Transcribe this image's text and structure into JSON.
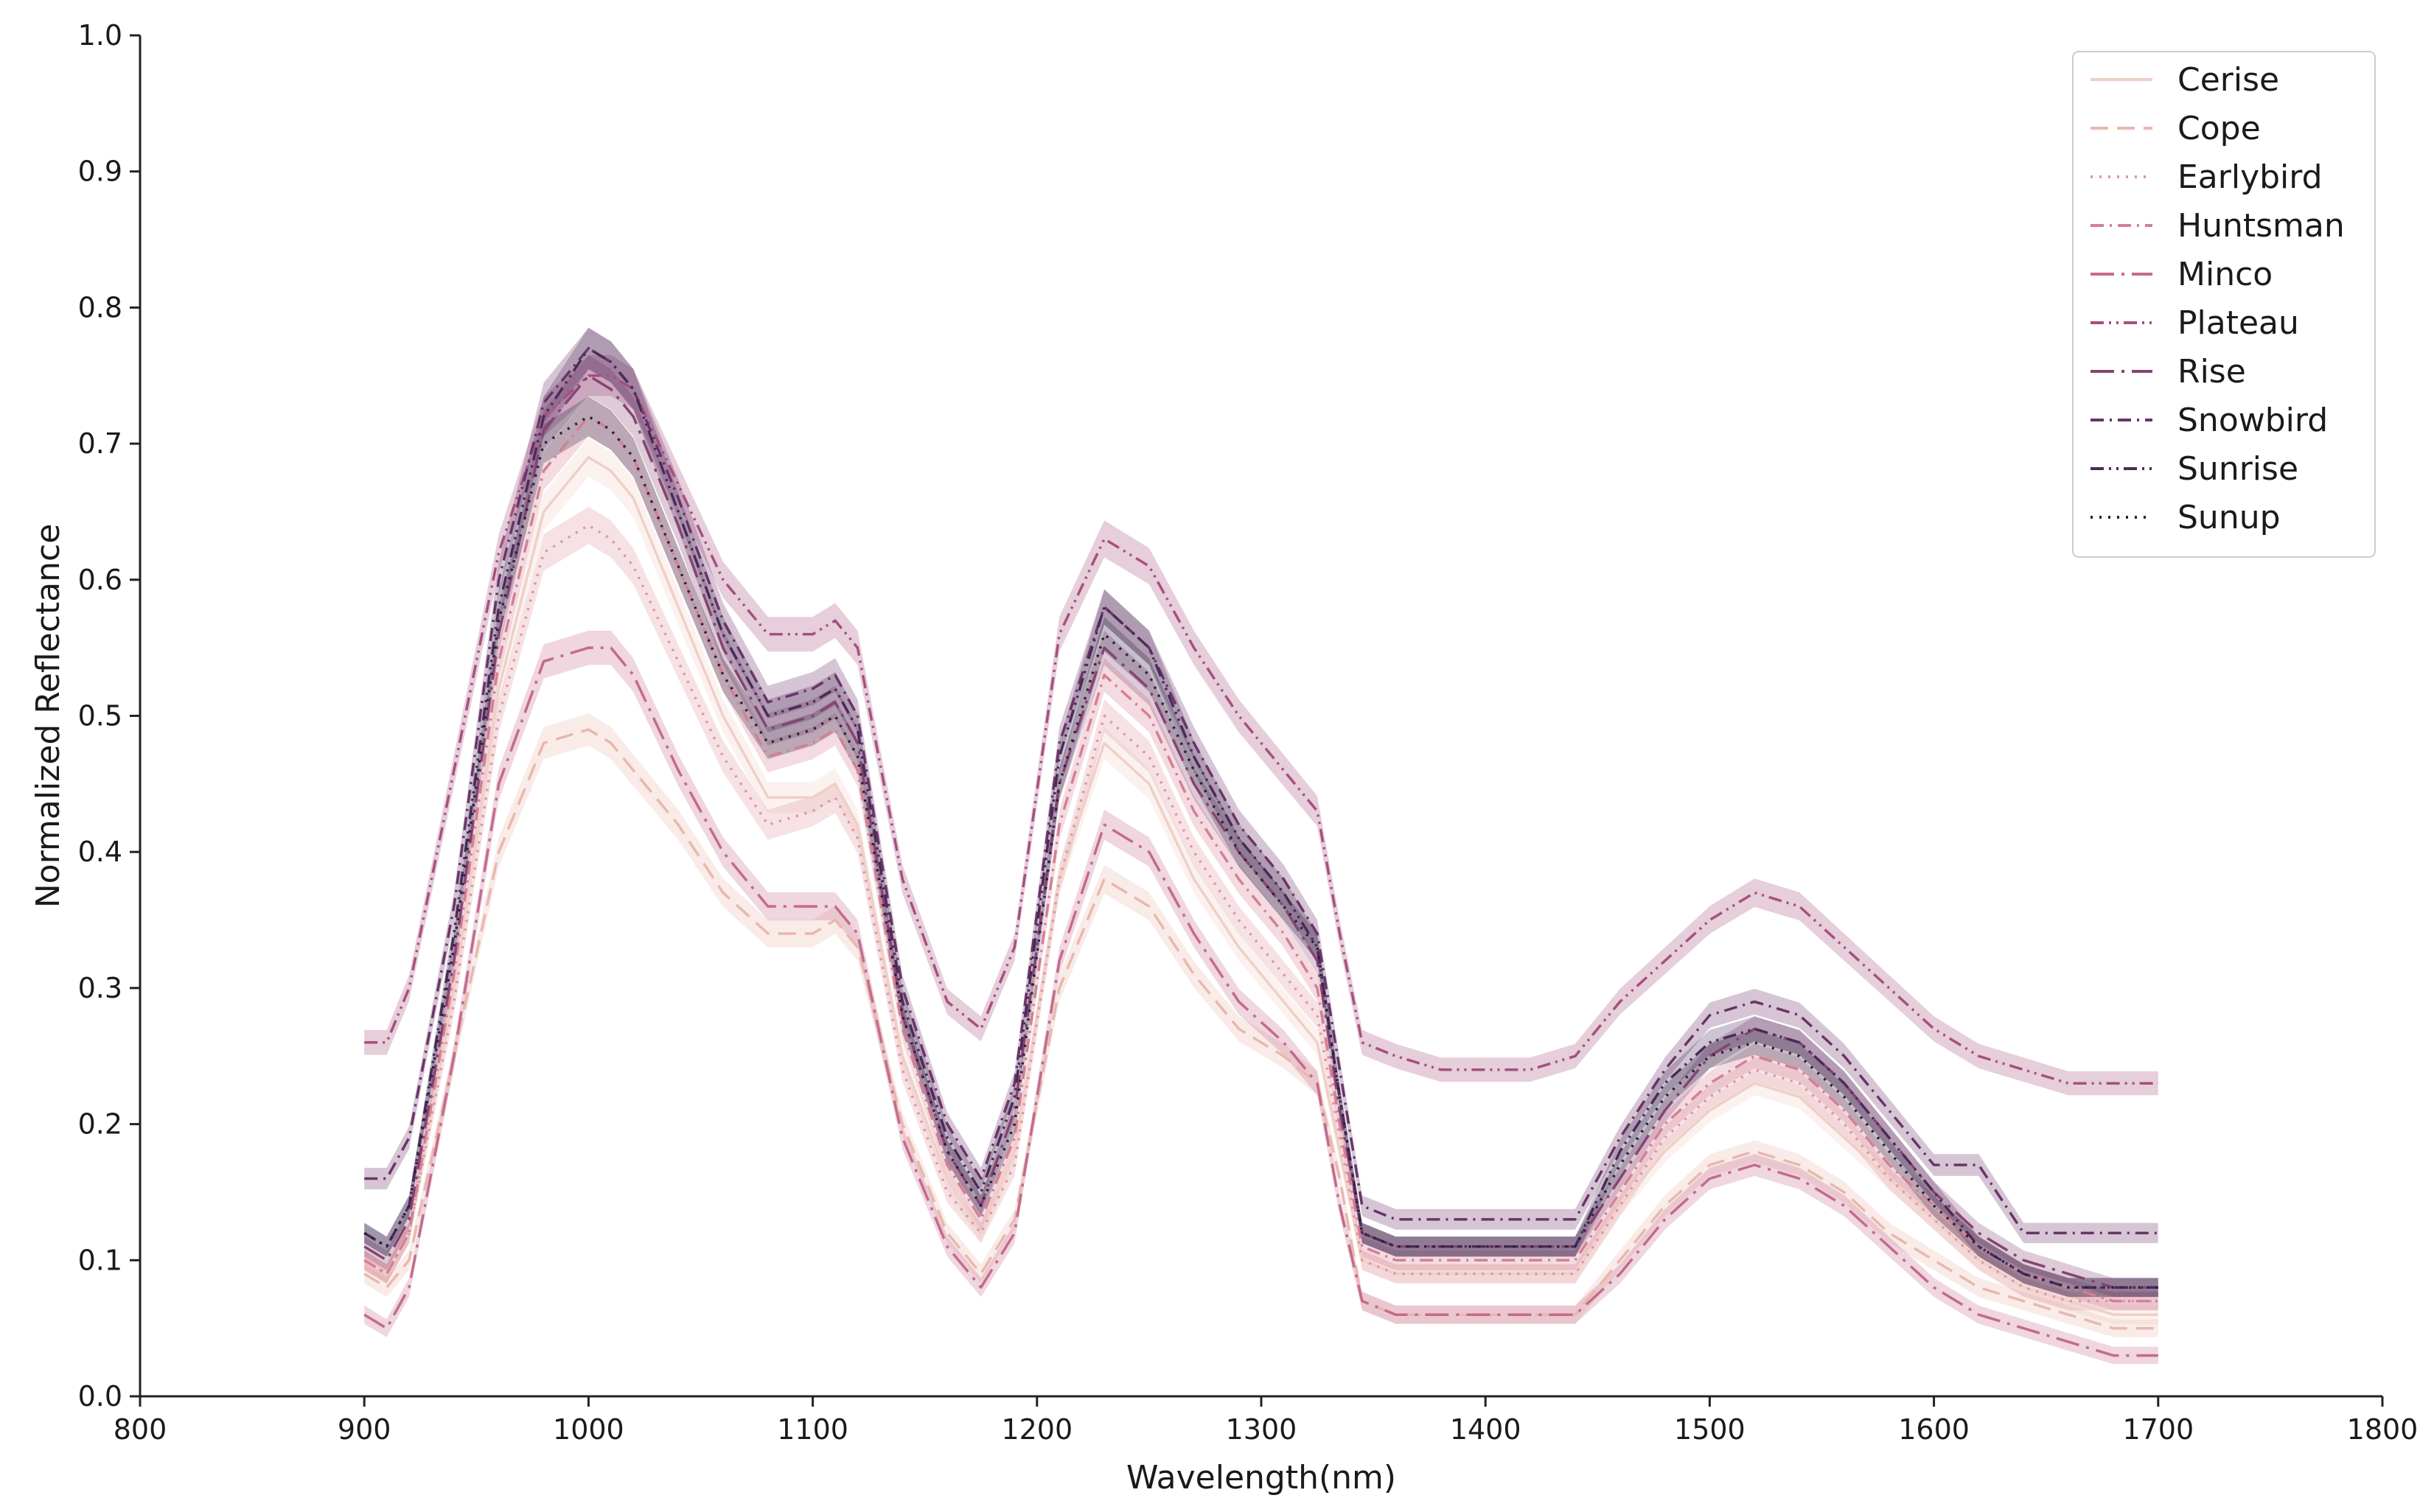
{
  "chart_data": {
    "type": "line",
    "title": "",
    "xlabel": "Wavelength(nm)",
    "ylabel": "Normalized Reflectance",
    "xlim": [
      800,
      1800
    ],
    "ylim": [
      0.0,
      1.0
    ],
    "xticks": [
      "800",
      "900",
      "1000",
      "1100",
      "1200",
      "1300",
      "1400",
      "1500",
      "1600",
      "1700",
      "1800"
    ],
    "yticks": [
      "0.0",
      "0.1",
      "0.2",
      "0.3",
      "0.4",
      "0.5",
      "0.6",
      "0.7",
      "0.8",
      "0.9",
      "1.0"
    ],
    "grid": false,
    "legend_position": "top-right",
    "shaded_band": "confidence interval",
    "x": [
      900,
      910,
      920,
      940,
      960,
      980,
      1000,
      1010,
      1020,
      1040,
      1060,
      1080,
      1100,
      1110,
      1120,
      1140,
      1160,
      1175,
      1190,
      1210,
      1230,
      1250,
      1270,
      1290,
      1310,
      1325,
      1335,
      1345,
      1360,
      1380,
      1400,
      1420,
      1440,
      1460,
      1480,
      1500,
      1520,
      1540,
      1560,
      1580,
      1600,
      1620,
      1640,
      1660,
      1680,
      1700
    ],
    "series": [
      {
        "name": "Cerise",
        "color": "#efcfc7",
        "dash": "solid",
        "values": [
          0.1,
          0.09,
          0.12,
          0.3,
          0.52,
          0.65,
          0.69,
          0.68,
          0.66,
          0.58,
          0.5,
          0.44,
          0.44,
          0.45,
          0.42,
          0.25,
          0.16,
          0.12,
          0.18,
          0.38,
          0.48,
          0.45,
          0.38,
          0.33,
          0.29,
          0.26,
          0.18,
          0.1,
          0.09,
          0.09,
          0.09,
          0.09,
          0.09,
          0.14,
          0.18,
          0.21,
          0.23,
          0.22,
          0.19,
          0.16,
          0.13,
          0.1,
          0.08,
          0.07,
          0.06,
          0.06
        ]
      },
      {
        "name": "Cope",
        "color": "#e8b8ad",
        "dash": "dashed",
        "values": [
          0.09,
          0.08,
          0.1,
          0.25,
          0.4,
          0.48,
          0.49,
          0.48,
          0.46,
          0.42,
          0.37,
          0.34,
          0.34,
          0.35,
          0.33,
          0.2,
          0.12,
          0.09,
          0.13,
          0.3,
          0.38,
          0.36,
          0.31,
          0.27,
          0.25,
          0.23,
          0.16,
          0.07,
          0.06,
          0.06,
          0.06,
          0.06,
          0.06,
          0.1,
          0.14,
          0.17,
          0.18,
          0.17,
          0.15,
          0.12,
          0.1,
          0.08,
          0.07,
          0.06,
          0.05,
          0.05
        ]
      },
      {
        "name": "Earlybird",
        "color": "#df96a0",
        "dash": "dotted",
        "values": [
          0.1,
          0.09,
          0.12,
          0.29,
          0.5,
          0.62,
          0.64,
          0.63,
          0.61,
          0.54,
          0.47,
          0.42,
          0.43,
          0.44,
          0.41,
          0.24,
          0.15,
          0.12,
          0.17,
          0.38,
          0.5,
          0.47,
          0.4,
          0.35,
          0.31,
          0.28,
          0.19,
          0.1,
          0.09,
          0.09,
          0.09,
          0.09,
          0.09,
          0.14,
          0.19,
          0.22,
          0.24,
          0.23,
          0.2,
          0.16,
          0.13,
          0.1,
          0.08,
          0.07,
          0.07,
          0.07
        ]
      },
      {
        "name": "Huntsman",
        "color": "#d47f94",
        "dash": "dashdot",
        "values": [
          0.1,
          0.09,
          0.12,
          0.31,
          0.54,
          0.68,
          0.72,
          0.71,
          0.69,
          0.61,
          0.53,
          0.47,
          0.48,
          0.49,
          0.46,
          0.27,
          0.17,
          0.13,
          0.19,
          0.42,
          0.53,
          0.5,
          0.43,
          0.38,
          0.34,
          0.3,
          0.2,
          0.11,
          0.1,
          0.1,
          0.1,
          0.1,
          0.1,
          0.15,
          0.2,
          0.23,
          0.25,
          0.24,
          0.21,
          0.17,
          0.14,
          0.11,
          0.09,
          0.08,
          0.07,
          0.07
        ]
      },
      {
        "name": "Minco",
        "color": "#c46a8c",
        "dash": "longdashdot",
        "values": [
          0.06,
          0.05,
          0.08,
          0.25,
          0.45,
          0.54,
          0.55,
          0.55,
          0.53,
          0.46,
          0.4,
          0.36,
          0.36,
          0.36,
          0.34,
          0.19,
          0.11,
          0.08,
          0.12,
          0.32,
          0.42,
          0.4,
          0.34,
          0.29,
          0.26,
          0.23,
          0.14,
          0.07,
          0.06,
          0.06,
          0.06,
          0.06,
          0.06,
          0.09,
          0.13,
          0.16,
          0.17,
          0.16,
          0.14,
          0.11,
          0.08,
          0.06,
          0.05,
          0.04,
          0.03,
          0.03
        ]
      },
      {
        "name": "Plateau",
        "color": "#a6507f",
        "dash": "dashdotdot",
        "values": [
          0.26,
          0.26,
          0.3,
          0.46,
          0.62,
          0.72,
          0.75,
          0.75,
          0.74,
          0.67,
          0.6,
          0.56,
          0.56,
          0.57,
          0.55,
          0.38,
          0.29,
          0.27,
          0.33,
          0.56,
          0.63,
          0.61,
          0.55,
          0.5,
          0.46,
          0.43,
          0.34,
          0.26,
          0.25,
          0.24,
          0.24,
          0.24,
          0.25,
          0.29,
          0.32,
          0.35,
          0.37,
          0.36,
          0.33,
          0.3,
          0.27,
          0.25,
          0.24,
          0.23,
          0.23,
          0.23
        ]
      },
      {
        "name": "Rise",
        "color": "#874373",
        "dash": "longdashdot",
        "values": [
          0.11,
          0.1,
          0.13,
          0.32,
          0.56,
          0.71,
          0.75,
          0.74,
          0.72,
          0.64,
          0.55,
          0.49,
          0.5,
          0.51,
          0.48,
          0.28,
          0.18,
          0.14,
          0.21,
          0.45,
          0.55,
          0.52,
          0.45,
          0.4,
          0.36,
          0.32,
          0.21,
          0.12,
          0.11,
          0.11,
          0.11,
          0.11,
          0.11,
          0.16,
          0.21,
          0.25,
          0.27,
          0.26,
          0.23,
          0.19,
          0.15,
          0.12,
          0.1,
          0.09,
          0.08,
          0.08
        ]
      },
      {
        "name": "Snowbird",
        "color": "#6a3468",
        "dash": "dashdot",
        "values": [
          0.16,
          0.16,
          0.19,
          0.36,
          0.6,
          0.73,
          0.77,
          0.76,
          0.74,
          0.66,
          0.57,
          0.51,
          0.52,
          0.53,
          0.5,
          0.3,
          0.2,
          0.16,
          0.23,
          0.48,
          0.58,
          0.55,
          0.48,
          0.42,
          0.38,
          0.34,
          0.24,
          0.14,
          0.13,
          0.13,
          0.13,
          0.13,
          0.13,
          0.19,
          0.24,
          0.28,
          0.29,
          0.28,
          0.25,
          0.21,
          0.17,
          0.17,
          0.12,
          0.12,
          0.12,
          0.12
        ]
      },
      {
        "name": "Sunrise",
        "color": "#4b2a58",
        "dash": "dashdotdot",
        "values": [
          0.12,
          0.11,
          0.14,
          0.34,
          0.58,
          0.72,
          0.77,
          0.76,
          0.74,
          0.65,
          0.56,
          0.5,
          0.51,
          0.52,
          0.49,
          0.29,
          0.19,
          0.15,
          0.22,
          0.47,
          0.58,
          0.55,
          0.47,
          0.41,
          0.37,
          0.33,
          0.22,
          0.12,
          0.11,
          0.11,
          0.11,
          0.11,
          0.11,
          0.18,
          0.23,
          0.26,
          0.27,
          0.26,
          0.23,
          0.19,
          0.15,
          0.11,
          0.09,
          0.08,
          0.08,
          0.08
        ]
      },
      {
        "name": "Sunup",
        "color": "#2e1f3f",
        "dash": "dotted",
        "values": [
          0.12,
          0.11,
          0.14,
          0.33,
          0.57,
          0.7,
          0.72,
          0.71,
          0.69,
          0.61,
          0.53,
          0.48,
          0.49,
          0.5,
          0.47,
          0.28,
          0.18,
          0.14,
          0.2,
          0.45,
          0.56,
          0.53,
          0.46,
          0.4,
          0.36,
          0.33,
          0.22,
          0.12,
          0.11,
          0.11,
          0.11,
          0.11,
          0.11,
          0.17,
          0.22,
          0.25,
          0.26,
          0.25,
          0.22,
          0.18,
          0.14,
          0.11,
          0.09,
          0.08,
          0.08,
          0.08
        ]
      }
    ]
  }
}
